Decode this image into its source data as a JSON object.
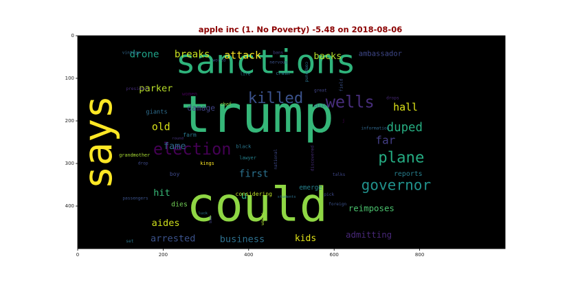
{
  "chart_data": {
    "type": "wordcloud",
    "title": "apple inc (1. No Poverty) -5.48 on 2018-08-06",
    "title_color": "#8b0000",
    "background": "#000000",
    "xlim": [
      0,
      1000
    ],
    "ylim": [
      500,
      0
    ],
    "x_ticks": [
      0,
      200,
      400,
      600,
      800
    ],
    "y_ticks": [
      0,
      100,
      200,
      300,
      400
    ],
    "grid": false,
    "words": [
      {
        "text": "trump",
        "x": 420,
        "y": 185,
        "size": 120,
        "color": "#35b779",
        "rotate": 0
      },
      {
        "text": "sanctions",
        "x": 440,
        "y": 62,
        "size": 78,
        "color": "#2fb47c",
        "rotate": 0
      },
      {
        "text": "could",
        "x": 420,
        "y": 398,
        "size": 110,
        "color": "#8fd744",
        "rotate": 0
      },
      {
        "text": "says",
        "x": 48,
        "y": 250,
        "size": 92,
        "color": "#fde725",
        "rotate": -90
      },
      {
        "text": "election",
        "x": 268,
        "y": 266,
        "size": 38,
        "color": "#440154",
        "rotate": 0
      },
      {
        "text": "killed",
        "x": 463,
        "y": 147,
        "size": 36,
        "color": "#3b528b",
        "rotate": 0
      },
      {
        "text": "wells",
        "x": 637,
        "y": 156,
        "size": 38,
        "color": "#472d7b",
        "rotate": 0
      },
      {
        "text": "governor",
        "x": 745,
        "y": 350,
        "size": 34,
        "color": "#21918c",
        "rotate": 0
      },
      {
        "text": "plane",
        "x": 757,
        "y": 286,
        "size": 36,
        "color": "#25ab82",
        "rotate": 0
      },
      {
        "text": "duped",
        "x": 765,
        "y": 216,
        "size": 28,
        "color": "#26ad81",
        "rotate": 0
      },
      {
        "text": "far",
        "x": 720,
        "y": 245,
        "size": 26,
        "color": "#433e85",
        "rotate": 0
      },
      {
        "text": "hall",
        "x": 767,
        "y": 168,
        "size": 24,
        "color": "#dde318",
        "rotate": 0
      },
      {
        "text": "backs",
        "x": 585,
        "y": 48,
        "size": 22,
        "color": "#b5de2b",
        "rotate": 0
      },
      {
        "text": "ambassador",
        "x": 708,
        "y": 43,
        "size": 17,
        "color": "#3f4889",
        "rotate": 0
      },
      {
        "text": "attack",
        "x": 386,
        "y": 46,
        "size": 24,
        "color": "#fde725",
        "rotate": 0
      },
      {
        "text": "breaks",
        "x": 268,
        "y": 44,
        "size": 23,
        "color": "#c8e020",
        "rotate": 0
      },
      {
        "text": "drone",
        "x": 156,
        "y": 44,
        "size": 23,
        "color": "#1fa187",
        "rotate": 0
      },
      {
        "text": "parker",
        "x": 183,
        "y": 124,
        "size": 22,
        "color": "#b8de29",
        "rotate": 0
      },
      {
        "text": "damage",
        "x": 289,
        "y": 170,
        "size": 18,
        "color": "#414487",
        "rotate": 0
      },
      {
        "text": "old",
        "x": 195,
        "y": 214,
        "size": 24,
        "color": "#d8e219",
        "rotate": 0
      },
      {
        "text": "fame",
        "x": 227,
        "y": 260,
        "size": 22,
        "color": "#31688e",
        "rotate": 0
      },
      {
        "text": "first",
        "x": 412,
        "y": 325,
        "size": 23,
        "color": "#2c728e",
        "rotate": 0
      },
      {
        "text": "hit",
        "x": 197,
        "y": 369,
        "size": 22,
        "color": "#38b977",
        "rotate": 0
      },
      {
        "text": "u",
        "x": 389,
        "y": 375,
        "size": 24,
        "color": "#29af7f",
        "rotate": 0
      },
      {
        "text": "dies",
        "x": 238,
        "y": 397,
        "size": 16,
        "color": "#73d056",
        "rotate": 0
      },
      {
        "text": "aides",
        "x": 206,
        "y": 440,
        "size": 22,
        "color": "#d0e11c",
        "rotate": 0
      },
      {
        "text": "arrested",
        "x": 223,
        "y": 477,
        "size": 22,
        "color": "#3b528b",
        "rotate": 0
      },
      {
        "text": "business",
        "x": 385,
        "y": 478,
        "size": 22,
        "color": "#2d708e",
        "rotate": 0
      },
      {
        "text": "kids",
        "x": 533,
        "y": 477,
        "size": 21,
        "color": "#e2e418",
        "rotate": 0
      },
      {
        "text": "admitting",
        "x": 681,
        "y": 467,
        "size": 20,
        "color": "#482878",
        "rotate": 0
      },
      {
        "text": "reimposes",
        "x": 687,
        "y": 405,
        "size": 20,
        "color": "#4ac16d",
        "rotate": 0
      },
      {
        "text": "reports",
        "x": 773,
        "y": 325,
        "size": 16,
        "color": "#277f8e",
        "rotate": 0
      },
      {
        "text": "emerge",
        "x": 545,
        "y": 357,
        "size": 15,
        "color": "#26828e",
        "rotate": 0
      },
      {
        "text": "considering",
        "x": 412,
        "y": 371,
        "size": 13,
        "color": "#bddf26",
        "rotate": 0
      },
      {
        "text": "giants",
        "x": 185,
        "y": 180,
        "size": 14,
        "color": "#2e6d8e",
        "rotate": 0
      },
      {
        "text": "farm",
        "x": 262,
        "y": 232,
        "size": 13,
        "color": "#2a788e",
        "rotate": 0
      },
      {
        "text": "grandmother",
        "x": 133,
        "y": 281,
        "size": 11,
        "color": "#a8db34",
        "rotate": 0
      },
      {
        "text": "drop",
        "x": 153,
        "y": 300,
        "size": 10,
        "color": "#3e4a89",
        "rotate": 0
      },
      {
        "text": "round",
        "x": 234,
        "y": 242,
        "size": 9,
        "color": "#46337e",
        "rotate": 0
      },
      {
        "text": "boy",
        "x": 227,
        "y": 324,
        "size": 13,
        "color": "#3e4989",
        "rotate": 0
      },
      {
        "text": "kings",
        "x": 303,
        "y": 300,
        "size": 11,
        "color": "#fde725",
        "rotate": 0
      },
      {
        "text": "black",
        "x": 388,
        "y": 260,
        "size": 12,
        "color": "#2a768e",
        "rotate": 0
      },
      {
        "text": "lawyer",
        "x": 398,
        "y": 287,
        "size": 11,
        "color": "#26828e",
        "rotate": 0
      },
      {
        "text": "chef",
        "x": 347,
        "y": 161,
        "size": 11,
        "color": "#8fd744",
        "rotate": 0
      },
      {
        "text": "women",
        "x": 262,
        "y": 136,
        "size": 12,
        "color": "#440154",
        "rotate": 0
      },
      {
        "text": "world",
        "x": 331,
        "y": 58,
        "size": 10,
        "color": "#3b528b",
        "rotate": 0
      },
      {
        "text": "life",
        "x": 392,
        "y": 90,
        "size": 10,
        "color": "#2a788e",
        "rotate": 0
      },
      {
        "text": "crash",
        "x": 480,
        "y": 89,
        "size": 11,
        "color": "#2a788e",
        "rotate": 0
      },
      {
        "text": "bans",
        "x": 469,
        "y": 40,
        "size": 10,
        "color": "#414487",
        "rotate": 0
      },
      {
        "text": "nervous",
        "x": 470,
        "y": 63,
        "size": 10,
        "color": "#3b528b",
        "rotate": 0
      },
      {
        "text": "compound",
        "x": 535,
        "y": 85,
        "size": 10,
        "color": "#2c728e",
        "rotate": 90
      },
      {
        "text": "great",
        "x": 568,
        "y": 129,
        "size": 10,
        "color": "#414487",
        "rotate": 0
      },
      {
        "text": "still",
        "x": 567,
        "y": 165,
        "size": 10,
        "color": "#3b528b",
        "rotate": 0
      },
      {
        "text": "discovered",
        "x": 550,
        "y": 288,
        "size": 10,
        "color": "#472d7b",
        "rotate": -90
      },
      {
        "text": "national",
        "x": 464,
        "y": 290,
        "size": 10,
        "color": "#3e4989",
        "rotate": -90
      },
      {
        "text": "field",
        "x": 617,
        "y": 116,
        "size": 10,
        "color": "#3b528b",
        "rotate": -90
      },
      {
        "text": "drops",
        "x": 737,
        "y": 147,
        "size": 10,
        "color": "#482878",
        "rotate": 0
      },
      {
        "text": "j",
        "x": 622,
        "y": 200,
        "size": 10,
        "color": "#440154",
        "rotate": 0
      },
      {
        "text": "information",
        "x": 696,
        "y": 218,
        "size": 10,
        "color": "#31688e",
        "rotate": 0
      },
      {
        "text": "talks",
        "x": 611,
        "y": 327,
        "size": 10,
        "color": "#3f4889",
        "rotate": 0
      },
      {
        "text": "pick",
        "x": 588,
        "y": 373,
        "size": 10,
        "color": "#3e4989",
        "rotate": 0
      },
      {
        "text": "foreign",
        "x": 608,
        "y": 396,
        "size": 10,
        "color": "#3b528b",
        "rotate": 0
      },
      {
        "text": "students",
        "x": 489,
        "y": 379,
        "size": 9,
        "color": "#2c728e",
        "rotate": 0
      },
      {
        "text": "wants",
        "x": 433,
        "y": 430,
        "size": 10,
        "color": "#a8db34",
        "rotate": -90
      },
      {
        "text": "bad",
        "x": 312,
        "y": 432,
        "size": 9,
        "color": "#414487",
        "rotate": -90
      },
      {
        "text": "luck",
        "x": 293,
        "y": 418,
        "size": 9,
        "color": "#2a788e",
        "rotate": 0
      },
      {
        "text": "set",
        "x": 122,
        "y": 483,
        "size": 10,
        "color": "#2a788e",
        "rotate": 0
      },
      {
        "text": "passengers",
        "x": 135,
        "y": 382,
        "size": 10,
        "color": "#3b528b",
        "rotate": 0
      },
      {
        "text": "vintage",
        "x": 125,
        "y": 40,
        "size": 10,
        "color": "#31688e",
        "rotate": 0
      },
      {
        "text": "president",
        "x": 140,
        "y": 125,
        "size": 10,
        "color": "#472d7b",
        "rotate": 0
      }
    ]
  }
}
